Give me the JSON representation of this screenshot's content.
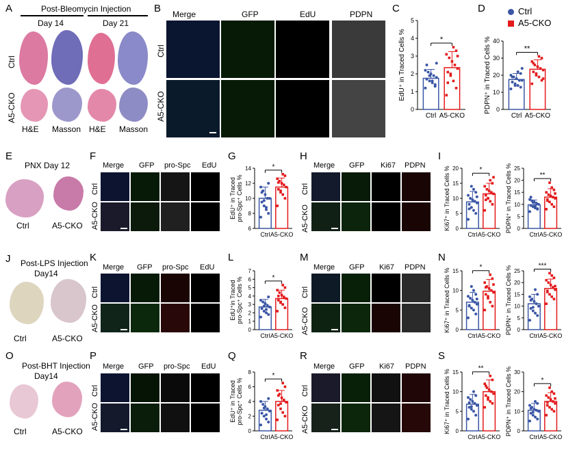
{
  "colors": {
    "ctrl": "#3a56a5",
    "cko": "#e31a1c",
    "he": "#d9719a",
    "masson": "#6b69b5"
  },
  "A": {
    "label": "A",
    "title": "Post-Bleomycin Injection",
    "day1": "Day 14",
    "day2": "Day 21",
    "row1": "Ctrl",
    "row2": "A5-CKO",
    "col_he": "H&E",
    "col_masson": "Masson"
  },
  "B": {
    "label": "B",
    "cols": [
      "Merge",
      "GFP",
      "EdU",
      "PDPN"
    ],
    "rows": [
      "Ctrl",
      "A5-CKO"
    ]
  },
  "C": {
    "label": "C",
    "ylabel": "EdU⁺ in Traced Cells %",
    "sig": "*"
  },
  "D": {
    "label": "D",
    "ylabel": "PDPN⁺ in Traced Cells %",
    "sig": "**"
  },
  "legend": {
    "ctrl": "Ctrl",
    "cko": "A5-CKO"
  },
  "E": {
    "label": "E",
    "title": "PNX  Day 12",
    "left": "Ctrl",
    "right": "A5-CKO"
  },
  "F": {
    "label": "F",
    "cols": [
      "Merge",
      "GFP",
      "pro-Spc",
      "EdU"
    ],
    "rows": [
      "Ctrl",
      "A5-CKO"
    ]
  },
  "G": {
    "label": "G",
    "ylabel1": "EdU⁺ in Traced",
    "ylabel2": "pro-Spc⁺ Cells %",
    "sig": "*"
  },
  "H": {
    "label": "H",
    "cols": [
      "Merge",
      "GFP",
      "Ki67",
      "PDPN"
    ],
    "rows": [
      "Ctrl",
      "A5-CKO"
    ]
  },
  "I": {
    "label": "I",
    "ylabel_a": "Ki67⁺ in Traced Cells %",
    "ylabel_b": "PDPN⁺ in Traced Cells %",
    "sig_a": "*",
    "sig_b": "**"
  },
  "J": {
    "label": "J",
    "title": "Post-LPS Injection",
    "sub": "Day14",
    "left": "Ctrl",
    "right": "A5-CKO"
  },
  "K": {
    "label": "K",
    "cols": [
      "Merge",
      "GFP",
      "pro-Spc",
      "EdU"
    ],
    "rows": [
      "Ctrl",
      "A5-CKO"
    ]
  },
  "L": {
    "label": "L",
    "ylabel1": "EdU⁺in Traced",
    "ylabel2": "pro-Spc⁺ Cells %",
    "sig": "*"
  },
  "M": {
    "label": "M",
    "cols": [
      "Merge",
      "GFP",
      "Ki67",
      "PDPN"
    ],
    "rows": [
      "Ctrl",
      "A5-CKO"
    ]
  },
  "N": {
    "label": "N",
    "ylabel_a": "Ki67⁺ in Traced Cells %",
    "ylabel_b": "PDPN⁺ in Traced Cells %",
    "sig_a": "*",
    "sig_b": "***"
  },
  "O": {
    "label": "O",
    "title": "Post-BHT Injection",
    "sub": "Day14",
    "left": "Ctrl",
    "right": "A5-CKO"
  },
  "P": {
    "label": "P",
    "cols": [
      "Merge",
      "GFP",
      "pro-Spc",
      "EdU"
    ],
    "rows": [
      "Ctrl",
      "A5-CKO"
    ]
  },
  "Q": {
    "label": "Q",
    "ylabel1": "EdU⁺ in Traced",
    "ylabel2": "pro-Spc⁺ Cells %",
    "sig": "*"
  },
  "R": {
    "label": "R",
    "cols": [
      "Merge",
      "GFP",
      "Ki67",
      "PDPN"
    ],
    "rows": [
      "Ctrl",
      "A5-CKO"
    ]
  },
  "S": {
    "label": "S",
    "ylabel_a": "Ki67⁺ in Traced Cells %",
    "ylabel_b": "PDPN⁺ in Traced Cells %",
    "sig_a": "**",
    "sig_b": "*"
  },
  "chart_data": [
    {
      "panel": "C",
      "type": "bar",
      "categories": [
        "Ctrl",
        "A5-CKO"
      ],
      "ylabel": "EdU⁺ in Traced Cells %",
      "ylim": [
        0,
        5
      ],
      "yticks": [
        0,
        1,
        2,
        3,
        4,
        5
      ],
      "values": [
        1.75,
        2.35
      ],
      "sd": [
        0.5,
        0.9
      ],
      "points": [
        [
          1.2,
          1.4,
          1.5,
          1.6,
          1.7,
          1.8,
          1.9,
          2.0,
          2.1,
          2.2,
          1.3,
          1.6,
          1.9,
          2.5,
          2.6
        ],
        [
          0.8,
          1.2,
          1.6,
          1.9,
          2.1,
          2.3,
          2.5,
          2.7,
          2.9,
          3.1,
          3.3,
          3.5,
          2.0,
          1.5,
          3.0
        ]
      ],
      "sig": "*"
    },
    {
      "panel": "D",
      "type": "bar",
      "categories": [
        "Ctrl",
        "A5-CKO"
      ],
      "ylabel": "PDPN⁺ in Traced Cells %",
      "ylim": [
        0,
        40
      ],
      "yticks": [
        0,
        10,
        20,
        30,
        40
      ],
      "values": [
        17.5,
        23.5
      ],
      "sd": [
        3.5,
        5.5
      ],
      "points": [
        [
          12,
          13,
          14,
          15,
          16,
          17,
          17,
          18,
          19,
          20,
          21,
          22,
          14,
          19,
          24
        ],
        [
          15,
          17,
          19,
          21,
          22,
          23,
          24,
          25,
          26,
          28,
          30,
          31,
          20,
          27,
          18
        ]
      ],
      "sig": "**"
    },
    {
      "panel": "G",
      "type": "bar",
      "categories": [
        "Ctrl",
        "A5-CKO"
      ],
      "ylabel": "EdU⁺ in Traced pro-Spc⁺ Cells %",
      "ylim": [
        6,
        14
      ],
      "yticks": [
        6,
        8,
        10,
        12,
        14
      ],
      "values": [
        10.0,
        11.5
      ],
      "sd": [
        1.5,
        1.2
      ],
      "points": [
        [
          7.5,
          8,
          8.5,
          9,
          9.5,
          10,
          10,
          10.5,
          11,
          11.5,
          12,
          8.8,
          9.7,
          10.8
        ],
        [
          9,
          10,
          10.5,
          11,
          11.2,
          11.5,
          11.8,
          12,
          12.3,
          12.6,
          13,
          13.2,
          10.8,
          12.1
        ]
      ],
      "sig": "*"
    },
    {
      "panel": "I1",
      "type": "bar",
      "categories": [
        "Ctrl",
        "A5-CKO"
      ],
      "ylabel": "Ki67⁺ in Traced Cells %",
      "ylim": [
        0,
        20
      ],
      "yticks": [
        0,
        5,
        10,
        15,
        20
      ],
      "values": [
        8.8,
        11.5
      ],
      "sd": [
        3.5,
        3.5
      ],
      "points": [
        [
          3,
          5,
          6,
          7,
          8,
          8.5,
          9,
          9.5,
          10,
          11,
          12,
          13,
          14,
          6.5,
          10.5
        ],
        [
          6,
          8,
          9,
          10,
          11,
          11.5,
          12,
          12.5,
          13,
          14,
          15,
          16,
          10,
          9.5,
          17
        ]
      ],
      "sig": "*"
    },
    {
      "panel": "I2",
      "type": "bar",
      "categories": [
        "Ctrl",
        "A5-CKO"
      ],
      "ylabel": "PDPN⁺ in Traced Cells %",
      "ylim": [
        0,
        25
      ],
      "yticks": [
        0,
        5,
        10,
        15,
        20,
        25
      ],
      "values": [
        9.8,
        13.0
      ],
      "sd": [
        2.0,
        3.5
      ],
      "points": [
        [
          7,
          8,
          8.5,
          9,
          9.5,
          10,
          10.5,
          11,
          11.5,
          12,
          8.2,
          9.2,
          10.8,
          13
        ],
        [
          8,
          9,
          10,
          11,
          12,
          12.5,
          13,
          13.5,
          14,
          15,
          16,
          17,
          19,
          11.5,
          14.5
        ]
      ],
      "sig": "**"
    },
    {
      "panel": "L",
      "type": "bar",
      "categories": [
        "Ctrl",
        "A5-CKO"
      ],
      "ylabel": "EdU⁺in Traced pro-Spc⁺ Cells %",
      "ylim": [
        0,
        7
      ],
      "yticks": [
        0,
        1,
        2,
        3,
        4,
        5,
        6,
        7
      ],
      "values": [
        2.7,
        3.7
      ],
      "sd": [
        0.9,
        1.0
      ],
      "points": [
        [
          1.5,
          1.8,
          2,
          2.2,
          2.5,
          2.7,
          2.9,
          3.1,
          3.3,
          3.5,
          3.9,
          2.4,
          2.8
        ],
        [
          2.2,
          2.6,
          3,
          3.3,
          3.5,
          3.7,
          3.9,
          4.1,
          4.4,
          4.7,
          5,
          5.3,
          3.2,
          4.0
        ]
      ],
      "sig": "*"
    },
    {
      "panel": "N1",
      "type": "bar",
      "categories": [
        "Ctrl",
        "A5-CKO"
      ],
      "ylabel": "Ki67⁺ in Traced Cells %",
      "ylim": [
        0,
        15
      ],
      "yticks": [
        0,
        5,
        10,
        15
      ],
      "values": [
        7.0,
        9.8
      ],
      "sd": [
        2.5,
        3.0
      ],
      "points": [
        [
          3,
          4,
          5,
          5.5,
          6,
          6.5,
          7,
          7.5,
          8,
          8.5,
          9,
          10,
          11,
          6.2,
          7.8
        ],
        [
          5,
          6,
          7,
          8,
          9,
          9.5,
          10,
          10.5,
          11,
          12,
          13,
          14,
          8.5,
          10.8,
          11.5
        ]
      ],
      "sig": "*"
    },
    {
      "panel": "N2",
      "type": "bar",
      "categories": [
        "Ctrl",
        "A5-CKO"
      ],
      "ylabel": "PDPN⁺ in Traced Cells %",
      "ylim": [
        0,
        25
      ],
      "yticks": [
        0,
        5,
        10,
        15,
        20,
        25
      ],
      "values": [
        11.0,
        17.5
      ],
      "sd": [
        4.0,
        4.0
      ],
      "points": [
        [
          4,
          6,
          7,
          8,
          9,
          10,
          11,
          12,
          13,
          14,
          15,
          17,
          9.5,
          12.5
        ],
        [
          11,
          13,
          14,
          15,
          16,
          17,
          18,
          19,
          20,
          21,
          22,
          23,
          24,
          16.5,
          18.5
        ]
      ],
      "sig": "***"
    },
    {
      "panel": "Q",
      "type": "bar",
      "categories": [
        "Ctrl",
        "A5-CKO"
      ],
      "ylabel": "EdU⁺ in Traced pro-Spc⁺ Cells %",
      "ylim": [
        0,
        8
      ],
      "yticks": [
        0,
        2,
        4,
        6,
        8
      ],
      "values": [
        2.8,
        4.0
      ],
      "sd": [
        1.2,
        1.5
      ],
      "points": [
        [
          0.8,
          1.2,
          1.6,
          2,
          2.4,
          2.7,
          3,
          3.3,
          3.6,
          4,
          4.4,
          2.2,
          3.1
        ],
        [
          1.5,
          2,
          2.5,
          3,
          3.5,
          3.9,
          4.2,
          4.5,
          5,
          5.5,
          6,
          6.5,
          3.7,
          4.8
        ]
      ],
      "sig": "*"
    },
    {
      "panel": "S1",
      "type": "bar",
      "categories": [
        "Ctrl",
        "A5-CKO"
      ],
      "ylabel": "Ki67⁺ in Traced Cells %",
      "ylim": [
        0,
        15
      ],
      "yticks": [
        0,
        5,
        10,
        15
      ],
      "values": [
        6.8,
        10.0
      ],
      "sd": [
        2.5,
        3.0
      ],
      "points": [
        [
          3,
          4,
          5,
          5.5,
          6,
          6.5,
          7,
          7.5,
          8,
          8.5,
          9,
          10,
          6.2,
          7.2
        ],
        [
          6,
          7,
          7.5,
          8,
          9,
          9.5,
          10,
          10.5,
          11,
          12,
          13,
          14,
          8.5,
          11.5
        ]
      ],
      "sig": "**"
    },
    {
      "panel": "S2",
      "type": "bar",
      "categories": [
        "Ctrl",
        "A5-CKO"
      ],
      "ylabel": "PDPN⁺ in Traced Cells %",
      "ylim": [
        0,
        30
      ],
      "yticks": [
        0,
        10,
        20,
        30
      ],
      "values": [
        10.5,
        15.0
      ],
      "sd": [
        3.5,
        4.5
      ],
      "points": [
        [
          5,
          6,
          7,
          8,
          9,
          10,
          10.5,
          11,
          12,
          13,
          14,
          15,
          9.5,
          11.5
        ],
        [
          8,
          10,
          11,
          12,
          13,
          14,
          15,
          16,
          17,
          18,
          19,
          20,
          22,
          14.5,
          16.5
        ]
      ],
      "sig": "*"
    }
  ]
}
